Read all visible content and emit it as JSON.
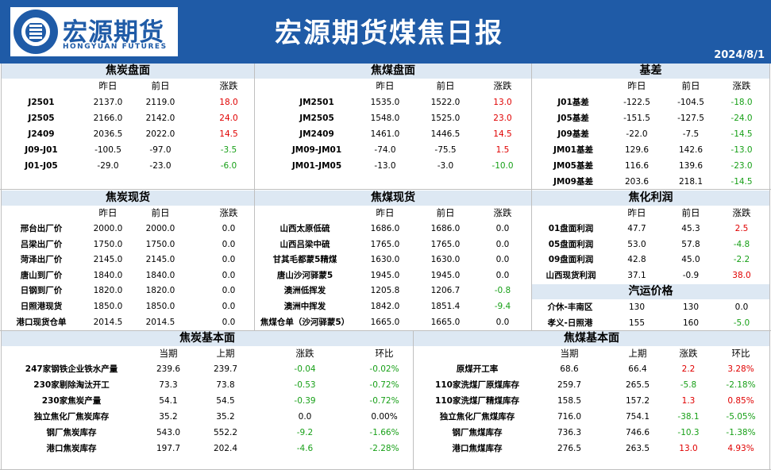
{
  "header": {
    "logo_cn": "宏源期货",
    "logo_en": "HONGYUAN FUTURES",
    "title": "宏源期货煤焦日报",
    "date": "2024/8/1"
  },
  "colors": {
    "header_bg": "#1f5ba7",
    "section_bg": "#dde8f3",
    "up": "#e00000",
    "down": "#18a018"
  },
  "coke_futures": {
    "title": "焦炭盘面",
    "cols": [
      "昨日",
      "前日",
      "涨跌"
    ],
    "rows": [
      {
        "name": "J2501",
        "y": "2137.0",
        "p": "2119.0",
        "c": "18.0",
        "dir": "up"
      },
      {
        "name": "J2505",
        "y": "2166.0",
        "p": "2142.0",
        "c": "24.0",
        "dir": "up"
      },
      {
        "name": "J2409",
        "y": "2036.5",
        "p": "2022.0",
        "c": "14.5",
        "dir": "up"
      },
      {
        "name": "J09-J01",
        "y": "-100.5",
        "p": "-97.0",
        "c": "-3.5",
        "dir": "down"
      },
      {
        "name": "J01-J05",
        "y": "-29.0",
        "p": "-23.0",
        "c": "-6.0",
        "dir": "down"
      }
    ]
  },
  "coking_coal_futures": {
    "title": "焦煤盘面",
    "cols": [
      "昨日",
      "前日",
      "涨跌"
    ],
    "rows": [
      {
        "name": "JM2501",
        "y": "1535.0",
        "p": "1522.0",
        "c": "13.0",
        "dir": "up"
      },
      {
        "name": "JM2505",
        "y": "1548.0",
        "p": "1525.0",
        "c": "23.0",
        "dir": "up"
      },
      {
        "name": "JM2409",
        "y": "1461.0",
        "p": "1446.5",
        "c": "14.5",
        "dir": "up"
      },
      {
        "name": "JM09-JM01",
        "y": "-74.0",
        "p": "-75.5",
        "c": "1.5",
        "dir": "up"
      },
      {
        "name": "JM01-JM05",
        "y": "-13.0",
        "p": "-3.0",
        "c": "-10.0",
        "dir": "down"
      }
    ]
  },
  "basis": {
    "title": "基差",
    "cols": [
      "昨日",
      "前日",
      "涨跌"
    ],
    "rows": [
      {
        "name": "J01基差",
        "y": "-122.5",
        "p": "-104.5",
        "c": "-18.0",
        "dir": "down"
      },
      {
        "name": "J05基差",
        "y": "-151.5",
        "p": "-127.5",
        "c": "-24.0",
        "dir": "down"
      },
      {
        "name": "J09基差",
        "y": "-22.0",
        "p": "-7.5",
        "c": "-14.5",
        "dir": "down"
      },
      {
        "name": "JM01基差",
        "y": "129.6",
        "p": "142.6",
        "c": "-13.0",
        "dir": "down"
      },
      {
        "name": "JM05基差",
        "y": "116.6",
        "p": "139.6",
        "c": "-23.0",
        "dir": "down"
      },
      {
        "name": "JM09基差",
        "y": "203.6",
        "p": "218.1",
        "c": "-14.5",
        "dir": "down"
      }
    ]
  },
  "coke_spot": {
    "title": "焦炭现货",
    "cols": [
      "昨日",
      "前日",
      "涨跌"
    ],
    "rows": [
      {
        "name": "邢台出厂价",
        "y": "2000.0",
        "p": "2000.0",
        "c": "0.0",
        "dir": "flat"
      },
      {
        "name": "吕梁出厂价",
        "y": "1750.0",
        "p": "1750.0",
        "c": "0.0",
        "dir": "flat"
      },
      {
        "name": "菏泽出厂价",
        "y": "2145.0",
        "p": "2145.0",
        "c": "0.0",
        "dir": "flat"
      },
      {
        "name": "唐山到厂价",
        "y": "1840.0",
        "p": "1840.0",
        "c": "0.0",
        "dir": "flat"
      },
      {
        "name": "日钢到厂价",
        "y": "1820.0",
        "p": "1820.0",
        "c": "0.0",
        "dir": "flat"
      },
      {
        "name": "日照港现货",
        "y": "1850.0",
        "p": "1850.0",
        "c": "0.0",
        "dir": "flat"
      },
      {
        "name": "港口现货仓单",
        "y": "2014.5",
        "p": "2014.5",
        "c": "0.0",
        "dir": "flat"
      }
    ]
  },
  "coal_spot": {
    "title": "焦煤现货",
    "cols": [
      "昨日",
      "前日",
      "涨跌"
    ],
    "rows": [
      {
        "name": "山西太原低硫",
        "y": "1686.0",
        "p": "1686.0",
        "c": "0.0",
        "dir": "flat"
      },
      {
        "name": "山西吕梁中硫",
        "y": "1765.0",
        "p": "1765.0",
        "c": "0.0",
        "dir": "flat"
      },
      {
        "name": "甘其毛都蒙5精煤",
        "y": "1630.0",
        "p": "1630.0",
        "c": "0.0",
        "dir": "flat"
      },
      {
        "name": "唐山沙河驿蒙5",
        "y": "1945.0",
        "p": "1945.0",
        "c": "0.0",
        "dir": "flat"
      },
      {
        "name": "澳洲低挥发",
        "y": "1205.8",
        "p": "1206.7",
        "c": "-0.8",
        "dir": "down"
      },
      {
        "name": "澳洲中挥发",
        "y": "1842.0",
        "p": "1851.4",
        "c": "-9.4",
        "dir": "down"
      },
      {
        "name": "焦煤仓单（沙河驿蒙5）",
        "y": "1665.0",
        "p": "1665.0",
        "c": "0.0",
        "dir": "flat"
      }
    ]
  },
  "coking_profit": {
    "title": "焦化利润",
    "cols": [
      "昨日",
      "前日",
      "涨跌"
    ],
    "rows": [
      {
        "name": "01盘面利润",
        "y": "47.7",
        "p": "45.3",
        "c": "2.5",
        "dir": "up"
      },
      {
        "name": "05盘面利润",
        "y": "53.0",
        "p": "57.8",
        "c": "-4.8",
        "dir": "down"
      },
      {
        "name": "09盘面利润",
        "y": "42.8",
        "p": "45.0",
        "c": "-2.2",
        "dir": "down"
      },
      {
        "name": "山西现货利润",
        "y": "37.1",
        "p": "-0.9",
        "c": "38.0",
        "dir": "up"
      }
    ]
  },
  "freight": {
    "title": "汽运价格",
    "rows": [
      {
        "name": "介休-丰南区",
        "y": "130",
        "p": "130",
        "c": "0.0",
        "dir": "flat"
      },
      {
        "name": "孝义-日照港",
        "y": "155",
        "p": "160",
        "c": "-5.0",
        "dir": "down"
      }
    ]
  },
  "coke_fundamentals": {
    "title": "焦炭基本面",
    "cols": [
      "当期",
      "上期",
      "涨跌",
      "环比"
    ],
    "rows": [
      {
        "name": "247家钢铁企业铁水产量",
        "cur": "239.6",
        "prev": "239.7",
        "c": "-0.04",
        "pct": "-0.02%",
        "dir": "down"
      },
      {
        "name": "230家剔除淘汰开工",
        "cur": "73.3",
        "prev": "73.8",
        "c": "-0.53",
        "pct": "-0.72%",
        "dir": "down"
      },
      {
        "name": "230家焦炭产量",
        "cur": "54.1",
        "prev": "54.5",
        "c": "-0.39",
        "pct": "-0.72%",
        "dir": "down"
      },
      {
        "name": "独立焦化厂焦炭库存",
        "cur": "35.2",
        "prev": "35.2",
        "c": "0.0",
        "pct": "0.00%",
        "dir": "flat"
      },
      {
        "name": "钢厂焦炭库存",
        "cur": "543.0",
        "prev": "552.2",
        "c": "-9.2",
        "pct": "-1.66%",
        "dir": "down"
      },
      {
        "name": "港口焦炭库存",
        "cur": "197.7",
        "prev": "202.4",
        "c": "-4.6",
        "pct": "-2.28%",
        "dir": "down"
      }
    ]
  },
  "coal_fundamentals": {
    "title": "焦煤基本面",
    "cols": [
      "当期",
      "上期",
      "涨跌",
      "环比"
    ],
    "rows": [
      {
        "name": "原煤开工率",
        "cur": "68.6",
        "prev": "66.4",
        "c": "2.2",
        "pct": "3.28%",
        "dir": "up"
      },
      {
        "name": "110家洗煤厂原煤库存",
        "cur": "259.7",
        "prev": "265.5",
        "c": "-5.8",
        "pct": "-2.18%",
        "dir": "down"
      },
      {
        "name": "110家洗煤厂精煤库存",
        "cur": "158.5",
        "prev": "157.2",
        "c": "1.3",
        "pct": "0.85%",
        "dir": "up"
      },
      {
        "name": "独立焦化厂焦煤库存",
        "cur": "716.0",
        "prev": "754.1",
        "c": "-38.1",
        "pct": "-5.05%",
        "dir": "down"
      },
      {
        "name": "钢厂焦煤库存",
        "cur": "736.3",
        "prev": "746.6",
        "c": "-10.3",
        "pct": "-1.38%",
        "dir": "down"
      },
      {
        "name": "港口焦煤库存",
        "cur": "276.5",
        "prev": "263.5",
        "c": "13.0",
        "pct": "4.93%",
        "dir": "up"
      }
    ]
  }
}
